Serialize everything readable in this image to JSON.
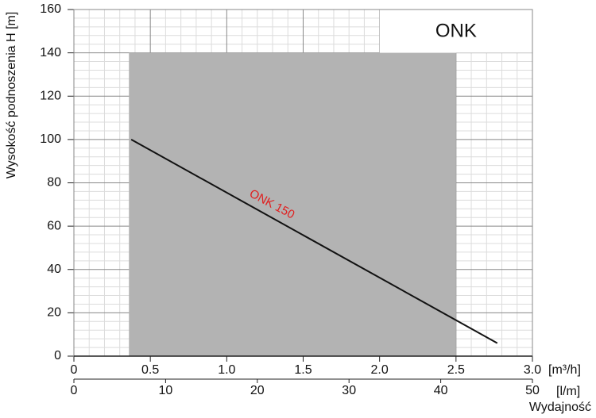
{
  "chart_data": {
    "type": "line",
    "title": "ONK",
    "y_label": "Wysokość podnoszenia H [m]",
    "x_unit": "[m³/h]",
    "x2_unit": "[l/m]",
    "x2_label": "Wydajność",
    "xlim": [
      0,
      3
    ],
    "xticks": [
      0,
      0.5,
      {
        "value": 1,
        "label": "1.0"
      },
      1.5,
      {
        "value": 2,
        "label": "2.0"
      },
      2.5,
      {
        "value": 3,
        "label": "3.0"
      }
    ],
    "x2lim": [
      0,
      50
    ],
    "x2ticks": [
      0,
      10,
      20,
      30,
      40,
      50
    ],
    "ylim": [
      0,
      160
    ],
    "yticks": [
      0,
      20,
      40,
      60,
      80,
      100,
      120,
      140,
      160
    ],
    "grid": true,
    "minor_divisions": 5,
    "region": {
      "x": [
        0.36,
        2.5
      ],
      "y": [
        0,
        140
      ],
      "color": "#b3b3b3"
    },
    "series": [
      {
        "name": "ONK 150",
        "color": "#111111",
        "label_color": "#e02020",
        "x": [
          0.375,
          2.77
        ],
        "values": [
          100,
          6
        ]
      }
    ]
  }
}
